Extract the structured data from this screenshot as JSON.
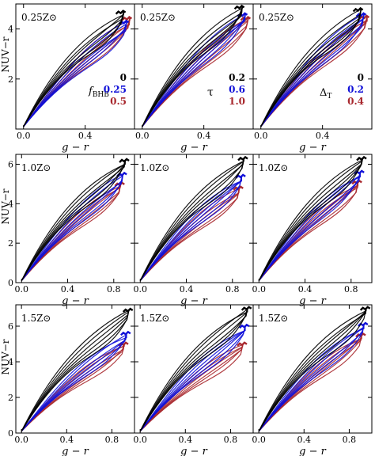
{
  "figure": {
    "ylabel": "NUV−r",
    "xlabel": "g − r"
  },
  "colors": {
    "black": "#000000",
    "blue": "#1010d8",
    "red": "#a8282e"
  },
  "chart_data": [
    {
      "type": "line",
      "panel": "r1c1",
      "metallicity": "0.25Z⊙",
      "xlim": [
        -0.05,
        0.72
      ],
      "ylim": [
        0,
        5
      ],
      "xticks": [
        "0.0",
        "0.4"
      ],
      "yticks": [
        "2",
        "4"
      ],
      "parameter": "f_BHB",
      "legend": [
        {
          "value": "0",
          "color": "#000000"
        },
        {
          "value": "0.25",
          "color": "#1010d8"
        },
        {
          "value": "0.5",
          "color": "#a8282e"
        }
      ],
      "end_g_r": [
        0.65,
        0.67,
        0.69
      ],
      "end_nuv_r": [
        4.7,
        4.3,
        4.45
      ]
    },
    {
      "type": "line",
      "panel": "r1c2",
      "metallicity": "0.25Z⊙",
      "xlim": [
        -0.05,
        0.72
      ],
      "ylim": [
        0,
        5
      ],
      "xticks": [
        "0.0",
        "0.4"
      ],
      "yticks": [
        "2",
        "4"
      ],
      "parameter": "τ",
      "legend": [
        {
          "value": "0.2",
          "color": "#000000"
        },
        {
          "value": "0.6",
          "color": "#1010d8"
        },
        {
          "value": "1.0",
          "color": "#a8282e"
        }
      ],
      "end_g_r": [
        0.65,
        0.67,
        0.69
      ],
      "end_nuv_r": [
        4.9,
        4.6,
        4.45
      ]
    },
    {
      "type": "line",
      "panel": "r1c3",
      "metallicity": "0.25Z⊙",
      "xlim": [
        -0.05,
        0.72
      ],
      "ylim": [
        0,
        5
      ],
      "xticks": [
        "0.0",
        "0.4"
      ],
      "yticks": [
        "2",
        "4"
      ],
      "parameter": "ΔT",
      "legend": [
        {
          "value": "0",
          "color": "#000000"
        },
        {
          "value": "0.2",
          "color": "#1010d8"
        },
        {
          "value": "0.4",
          "color": "#a8282e"
        }
      ],
      "end_g_r": [
        0.65,
        0.67,
        0.69
      ],
      "end_nuv_r": [
        4.8,
        4.6,
        4.5
      ]
    },
    {
      "type": "line",
      "panel": "r2c1",
      "metallicity": "1.0Z⊙",
      "xlim": [
        -0.05,
        0.98
      ],
      "ylim": [
        0,
        6.5
      ],
      "xticks": [
        "0.0",
        "0.4",
        "0.8"
      ],
      "yticks": [
        "0",
        "2",
        "4",
        "6"
      ],
      "end_g_r": [
        0.9,
        0.88,
        0.86
      ],
      "end_nuv_r": [
        6.2,
        5.5,
        5.0
      ]
    },
    {
      "type": "line",
      "panel": "r2c2",
      "metallicity": "1.0Z⊙",
      "xlim": [
        -0.05,
        0.98
      ],
      "ylim": [
        0,
        6.5
      ],
      "xticks": [
        "0.0",
        "0.4",
        "0.8"
      ],
      "yticks": [
        "0",
        "2",
        "4",
        "6"
      ],
      "end_g_r": [
        0.9,
        0.88,
        0.86
      ],
      "end_nuv_r": [
        6.3,
        5.4,
        4.8
      ]
    },
    {
      "type": "line",
      "panel": "r2c3",
      "metallicity": "1.0Z⊙",
      "xlim": [
        -0.05,
        0.98
      ],
      "ylim": [
        0,
        6.5
      ],
      "xticks": [
        "0.0",
        "0.4",
        "0.8"
      ],
      "yticks": [
        "0",
        "2",
        "4",
        "6"
      ],
      "end_g_r": [
        0.9,
        0.88,
        0.86
      ],
      "end_nuv_r": [
        6.3,
        5.6,
        5.1
      ]
    },
    {
      "type": "line",
      "panel": "r3c1",
      "metallicity": "1.5Z⊙",
      "xlim": [
        -0.05,
        1.0
      ],
      "ylim": [
        0,
        7.2
      ],
      "xticks": [
        "0.0",
        "0.4",
        "0.8"
      ],
      "yticks": [
        "0",
        "2",
        "4",
        "6"
      ],
      "end_g_r": [
        0.95,
        0.93,
        0.91
      ],
      "end_nuv_r": [
        6.9,
        5.6,
        5.0
      ]
    },
    {
      "type": "line",
      "panel": "r3c2",
      "metallicity": "1.5Z⊙",
      "xlim": [
        -0.05,
        1.0
      ],
      "ylim": [
        0,
        7.2
      ],
      "xticks": [
        "0.0",
        "0.4",
        "0.8"
      ],
      "yticks": [
        "0",
        "2",
        "4",
        "6"
      ],
      "end_g_r": [
        0.95,
        0.93,
        0.91
      ],
      "end_nuv_r": [
        7.0,
        6.0,
        5.0
      ]
    },
    {
      "type": "line",
      "panel": "r3c3",
      "metallicity": "1.5Z⊙",
      "xlim": [
        -0.05,
        1.0
      ],
      "ylim": [
        0,
        7.2
      ],
      "xticks": [
        "0.0",
        "0.4",
        "0.8"
      ],
      "yticks": [
        "0",
        "2",
        "4",
        "6"
      ],
      "end_g_r": [
        0.95,
        0.93,
        0.91
      ],
      "end_nuv_r": [
        7.0,
        6.1,
        5.5
      ]
    }
  ]
}
